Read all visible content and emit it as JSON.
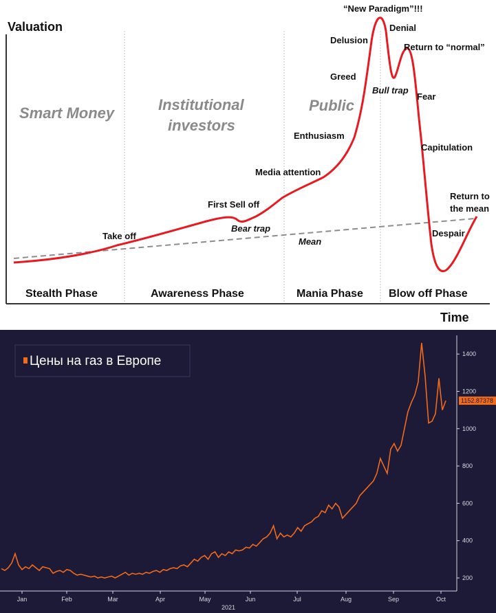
{
  "chart_data": [
    {
      "type": "line",
      "ylabel": "Valuation",
      "xlabel": "Time",
      "investor_groups": [
        "Smart Money",
        "Institutional investors",
        "Public"
      ],
      "phases": [
        "Stealth Phase",
        "Awareness Phase",
        "Mania Phase",
        "Blow off Phase"
      ],
      "annotations": {
        "take_off": "Take off",
        "first_sell_off": "First Sell off",
        "bear_trap": "Bear trap",
        "media_attention": "Media attention",
        "mean": "Mean",
        "enthusiasm": "Enthusiasm",
        "greed": "Greed",
        "delusion": "Delusion",
        "new_paradigm": "“New Paradigm”!!!",
        "denial": "Denial",
        "return_to_normal": "Return to “normal”",
        "bull_trap": "Bull trap",
        "fear": "Fear",
        "capitulation": "Capitulation",
        "return_to_mean_1": "Return to",
        "return_to_mean_2": "the mean",
        "despair": "Despair"
      },
      "colors": {
        "curve": "#e8191f",
        "mean_line": "#8c8c8c",
        "dividers": "#c8c8c8"
      }
    },
    {
      "type": "line",
      "legend": "Цены на газ в Европе",
      "x_ticks": [
        "Jan",
        "Feb",
        "Mar",
        "Apr",
        "May",
        "Jun",
        "Jul",
        "Aug",
        "Sep",
        "Oct"
      ],
      "x_year": "2021",
      "y_ticks": [
        200,
        400,
        600,
        800,
        1000,
        1200,
        1400
      ],
      "ylim": [
        130,
        1500
      ],
      "last_value_label": "1152.87378",
      "colors": {
        "line": "#f26a1b",
        "background": "#1c1a36",
        "axis": "#d8d8e0"
      },
      "series": [
        {
          "values": [
            250,
            240,
            255,
            280,
            330,
            270,
            245,
            260,
            250,
            270,
            255,
            240,
            260,
            255,
            250,
            225,
            235,
            240,
            230,
            245,
            240,
            225,
            215,
            220,
            215,
            210,
            205,
            210,
            200,
            205,
            200,
            205,
            210,
            200,
            210,
            220,
            230,
            215,
            225,
            220,
            225,
            220,
            230,
            225,
            235,
            240,
            230,
            245,
            240,
            250,
            255,
            250,
            265,
            270,
            260,
            280,
            300,
            290,
            310,
            320,
            300,
            330,
            340,
            310,
            330,
            320,
            340,
            330,
            350,
            345,
            350,
            365,
            360,
            380,
            370,
            390,
            410,
            420,
            440,
            480,
            410,
            440,
            420,
            430,
            420,
            440,
            470,
            450,
            480,
            490,
            500,
            520,
            530,
            560,
            550,
            590,
            570,
            600,
            580,
            520,
            540,
            560,
            580,
            600,
            640,
            660,
            680,
            700,
            720,
            760,
            840,
            800,
            760,
            890,
            920,
            880,
            910,
            1000,
            1090,
            1140,
            1180,
            1250,
            1460,
            1280,
            1030,
            1040,
            1080,
            1270,
            1100,
            1150
          ]
        }
      ]
    }
  ]
}
